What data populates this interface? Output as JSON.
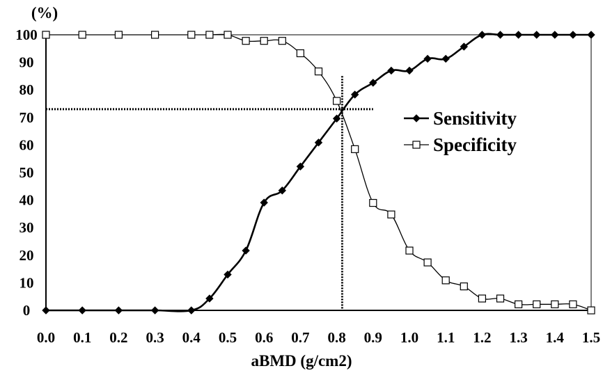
{
  "chart_data": {
    "type": "line",
    "xlabel": "aBMD (g/cm2)",
    "ylabel": "(%)",
    "xlim": [
      0,
      1.5
    ],
    "ylim": [
      0,
      100
    ],
    "x_ticks": [
      "0.0",
      "0.1",
      "0.2",
      "0.3",
      "0.4",
      "0.5",
      "0.6",
      "0.7",
      "0.8",
      "0.9",
      "1.0",
      "1.1",
      "1.2",
      "1.3",
      "1.4",
      "1.5"
    ],
    "y_ticks": [
      "0",
      "10",
      "20",
      "30",
      "40",
      "50",
      "60",
      "70",
      "80",
      "90",
      "100"
    ],
    "grid": false,
    "legend_position": "right-center",
    "series": [
      {
        "name": "Sensitivity",
        "marker": "filled-diamond",
        "color": "#000000",
        "points": [
          [
            0.0,
            0
          ],
          [
            0.1,
            0
          ],
          [
            0.2,
            0
          ],
          [
            0.3,
            0
          ],
          [
            0.4,
            0
          ],
          [
            0.45,
            4.3
          ],
          [
            0.5,
            13
          ],
          [
            0.55,
            21.7
          ],
          [
            0.6,
            39.1
          ],
          [
            0.65,
            43.5
          ],
          [
            0.7,
            52.2
          ],
          [
            0.75,
            60.9
          ],
          [
            0.8,
            69.6
          ],
          [
            0.85,
            78.3
          ],
          [
            0.9,
            82.6
          ],
          [
            0.95,
            87
          ],
          [
            1.0,
            87
          ],
          [
            1.05,
            91.3
          ],
          [
            1.1,
            91.3
          ],
          [
            1.15,
            95.7
          ],
          [
            1.2,
            100
          ],
          [
            1.25,
            100
          ],
          [
            1.3,
            100
          ],
          [
            1.35,
            100
          ],
          [
            1.4,
            100
          ],
          [
            1.45,
            100
          ],
          [
            1.5,
            100
          ]
        ]
      },
      {
        "name": "Specificity",
        "marker": "open-square",
        "color": "#000000",
        "points": [
          [
            0.0,
            100
          ],
          [
            0.1,
            100
          ],
          [
            0.2,
            100
          ],
          [
            0.3,
            100
          ],
          [
            0.4,
            100
          ],
          [
            0.45,
            100
          ],
          [
            0.5,
            100
          ],
          [
            0.55,
            97.8
          ],
          [
            0.6,
            97.8
          ],
          [
            0.65,
            97.8
          ],
          [
            0.7,
            93.3
          ],
          [
            0.75,
            86.7
          ],
          [
            0.8,
            76
          ],
          [
            0.85,
            58.5
          ],
          [
            0.9,
            39
          ],
          [
            0.95,
            34.8
          ],
          [
            1.0,
            21.7
          ],
          [
            1.05,
            17.4
          ],
          [
            1.1,
            10.9
          ],
          [
            1.15,
            8.7
          ],
          [
            1.2,
            4.3
          ],
          [
            1.25,
            4.3
          ],
          [
            1.3,
            2.2
          ],
          [
            1.35,
            2.2
          ],
          [
            1.4,
            2.2
          ],
          [
            1.45,
            2.2
          ],
          [
            1.5,
            0
          ]
        ]
      }
    ],
    "reference_lines": {
      "x": 0.815,
      "y": 73
    }
  }
}
